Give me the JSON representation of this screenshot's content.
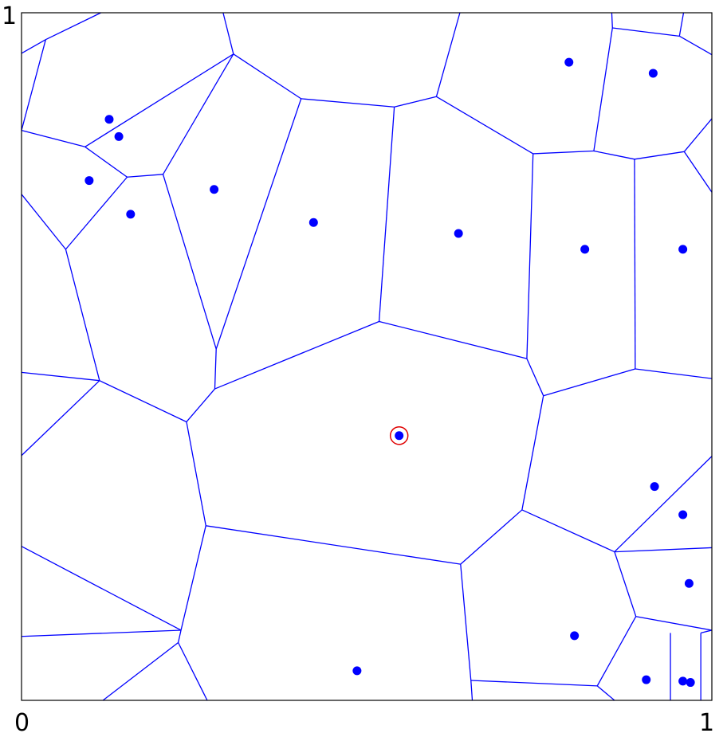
{
  "labels": {
    "y_max": "1",
    "x_min": "0",
    "x_max": "1"
  },
  "colors": {
    "edge": "#0000ff",
    "point": "#0000ff",
    "highlight": "#e00000",
    "frame": "#000000"
  },
  "chart_data": {
    "type": "scatter",
    "title": "",
    "xlabel": "",
    "ylabel": "",
    "xlim": [
      0,
      1
    ],
    "ylim": [
      0,
      1
    ],
    "grid": false,
    "sites": [
      [
        0.127,
        0.845
      ],
      [
        0.141,
        0.82
      ],
      [
        0.098,
        0.756
      ],
      [
        0.158,
        0.707
      ],
      [
        0.279,
        0.743
      ],
      [
        0.423,
        0.695
      ],
      [
        0.633,
        0.679
      ],
      [
        0.793,
        0.928
      ],
      [
        0.915,
        0.912
      ],
      [
        0.816,
        0.656
      ],
      [
        0.958,
        0.656
      ],
      [
        0.547,
        0.385
      ],
      [
        0.917,
        0.311
      ],
      [
        0.958,
        0.27
      ],
      [
        0.967,
        0.17
      ],
      [
        0.801,
        0.094
      ],
      [
        0.486,
        0.043
      ],
      [
        0.905,
        0.03
      ],
      [
        0.958,
        0.028
      ],
      [
        0.969,
        0.026
      ]
    ],
    "highlighted_site": [
      0.547,
      0.385
    ],
    "voronoi_edges": [
      [
        [
          0.035,
          0.961
        ],
        [
          0.115,
          1.0
        ]
      ],
      [
        [
          0.0,
          0.941
        ],
        [
          0.035,
          0.961
        ]
      ],
      [
        [
          0.035,
          0.961
        ],
        [
          0.0,
          0.829
        ]
      ],
      [
        [
          0.0,
          0.829
        ],
        [
          0.092,
          0.805
        ]
      ],
      [
        [
          0.092,
          0.805
        ],
        [
          0.153,
          0.761
        ]
      ],
      [
        [
          0.092,
          0.805
        ],
        [
          0.307,
          0.94
        ]
      ],
      [
        [
          0.153,
          0.761
        ],
        [
          0.205,
          0.765
        ]
      ],
      [
        [
          0.153,
          0.761
        ],
        [
          0.064,
          0.656
        ]
      ],
      [
        [
          0.064,
          0.656
        ],
        [
          0.0,
          0.736
        ]
      ],
      [
        [
          0.064,
          0.656
        ],
        [
          0.113,
          0.465
        ]
      ],
      [
        [
          0.113,
          0.465
        ],
        [
          0.0,
          0.477
        ]
      ],
      [
        [
          0.113,
          0.465
        ],
        [
          0.0,
          0.356
        ]
      ],
      [
        [
          0.113,
          0.465
        ],
        [
          0.239,
          0.405
        ]
      ],
      [
        [
          0.205,
          0.765
        ],
        [
          0.307,
          0.94
        ]
      ],
      [
        [
          0.205,
          0.765
        ],
        [
          0.282,
          0.511
        ]
      ],
      [
        [
          0.307,
          0.94
        ],
        [
          0.292,
          1.0
        ]
      ],
      [
        [
          0.307,
          0.94
        ],
        [
          0.405,
          0.875
        ]
      ],
      [
        [
          0.405,
          0.875
        ],
        [
          0.282,
          0.511
        ]
      ],
      [
        [
          0.405,
          0.875
        ],
        [
          0.54,
          0.863
        ]
      ],
      [
        [
          0.282,
          0.511
        ],
        [
          0.28,
          0.453
        ]
      ],
      [
        [
          0.28,
          0.453
        ],
        [
          0.239,
          0.405
        ]
      ],
      [
        [
          0.28,
          0.453
        ],
        [
          0.518,
          0.551
        ]
      ],
      [
        [
          0.239,
          0.405
        ],
        [
          0.267,
          0.254
        ]
      ],
      [
        [
          0.54,
          0.863
        ],
        [
          0.518,
          0.551
        ]
      ],
      [
        [
          0.54,
          0.863
        ],
        [
          0.601,
          0.878
        ]
      ],
      [
        [
          0.601,
          0.878
        ],
        [
          0.635,
          1.0
        ]
      ],
      [
        [
          0.601,
          0.878
        ],
        [
          0.741,
          0.795
        ]
      ],
      [
        [
          0.741,
          0.795
        ],
        [
          0.829,
          0.799
        ]
      ],
      [
        [
          0.741,
          0.795
        ],
        [
          0.732,
          0.497
        ]
      ],
      [
        [
          0.518,
          0.551
        ],
        [
          0.732,
          0.497
        ]
      ],
      [
        [
          0.732,
          0.497
        ],
        [
          0.756,
          0.443
        ]
      ],
      [
        [
          0.756,
          0.443
        ],
        [
          0.889,
          0.482
        ]
      ],
      [
        [
          0.756,
          0.443
        ],
        [
          0.725,
          0.277
        ]
      ],
      [
        [
          0.829,
          0.799
        ],
        [
          0.856,
          0.978
        ]
      ],
      [
        [
          0.829,
          0.799
        ],
        [
          0.888,
          0.787
        ]
      ],
      [
        [
          0.856,
          0.978
        ],
        [
          0.953,
          0.966
        ]
      ],
      [
        [
          0.856,
          0.978
        ],
        [
          0.855,
          1.0
        ]
      ],
      [
        [
          0.953,
          0.966
        ],
        [
          0.959,
          1.0
        ]
      ],
      [
        [
          0.953,
          0.966
        ],
        [
          1.0,
          0.939
        ]
      ],
      [
        [
          0.888,
          0.787
        ],
        [
          0.96,
          0.798
        ]
      ],
      [
        [
          0.888,
          0.787
        ],
        [
          0.889,
          0.482
        ]
      ],
      [
        [
          0.96,
          0.798
        ],
        [
          1.0,
          0.846
        ]
      ],
      [
        [
          0.96,
          0.798
        ],
        [
          1.0,
          0.739
        ]
      ],
      [
        [
          0.889,
          0.482
        ],
        [
          1.0,
          0.468
        ]
      ],
      [
        [
          0.725,
          0.277
        ],
        [
          0.636,
          0.198
        ]
      ],
      [
        [
          0.725,
          0.277
        ],
        [
          0.859,
          0.216
        ]
      ],
      [
        [
          0.859,
          0.216
        ],
        [
          1.0,
          0.355
        ]
      ],
      [
        [
          0.859,
          0.216
        ],
        [
          1.0,
          0.222
        ]
      ],
      [
        [
          0.859,
          0.216
        ],
        [
          0.89,
          0.122
        ]
      ],
      [
        [
          0.89,
          0.122
        ],
        [
          1.0,
          0.102
        ]
      ],
      [
        [
          0.89,
          0.122
        ],
        [
          0.834,
          0.021
        ]
      ],
      [
        [
          0.636,
          0.198
        ],
        [
          0.267,
          0.254
        ]
      ],
      [
        [
          0.636,
          0.198
        ],
        [
          0.651,
          0.029
        ]
      ],
      [
        [
          0.267,
          0.254
        ],
        [
          0.231,
          0.102
        ]
      ],
      [
        [
          0.231,
          0.102
        ],
        [
          0.0,
          0.093
        ]
      ],
      [
        [
          0.231,
          0.102
        ],
        [
          0.0,
          0.224
        ]
      ],
      [
        [
          0.231,
          0.102
        ],
        [
          0.227,
          0.084
        ]
      ],
      [
        [
          0.227,
          0.084
        ],
        [
          0.269,
          0.0
        ]
      ],
      [
        [
          0.227,
          0.084
        ],
        [
          0.118,
          0.0
        ]
      ],
      [
        [
          0.651,
          0.029
        ],
        [
          0.834,
          0.021
        ]
      ],
      [
        [
          0.651,
          0.029
        ],
        [
          0.653,
          0.0
        ]
      ],
      [
        [
          0.834,
          0.021
        ],
        [
          0.859,
          0.0
        ]
      ],
      [
        [
          0.94,
          0.098
        ],
        [
          0.94,
          0.0
        ]
      ],
      [
        [
          0.984,
          0.098
        ],
        [
          0.984,
          0.0
        ]
      ],
      [
        [
          0.984,
          0.098
        ],
        [
          1.0,
          0.102
        ]
      ]
    ]
  }
}
